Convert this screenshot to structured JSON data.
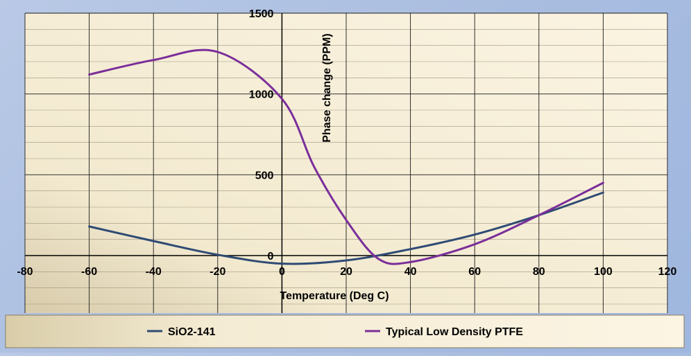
{
  "chart_data": {
    "type": "line",
    "title": "",
    "xlabel": "Temperature  (Deg C)",
    "ylabel": "Phase change (PPM)",
    "xlim": [
      -80,
      120
    ],
    "ylim": [
      0,
      1500
    ],
    "x_ticks": [
      -80,
      -60,
      -40,
      -20,
      0,
      20,
      40,
      60,
      80,
      100,
      120
    ],
    "y_ticks": [
      0,
      500,
      1000,
      1500
    ],
    "grid": true,
    "legend_position": "bottom",
    "series": [
      {
        "name": "SiO2-141",
        "color": "#2e4a74",
        "x": [
          -60,
          -40,
          -20,
          0,
          20,
          40,
          60,
          80,
          100
        ],
        "y": [
          180,
          90,
          5,
          -50,
          -30,
          40,
          130,
          250,
          390
        ]
      },
      {
        "name": "Typical Low Density PTFE",
        "color": "#7a2e9a",
        "x": [
          -60,
          -40,
          -20,
          0,
          10,
          20,
          30,
          40,
          60,
          80,
          100
        ],
        "y": [
          1120,
          1210,
          1260,
          970,
          550,
          220,
          -20,
          -40,
          70,
          250,
          450
        ]
      }
    ]
  }
}
